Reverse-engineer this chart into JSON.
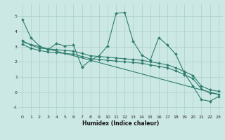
{
  "xlabel": "Humidex (Indice chaleur)",
  "bg_color": "#cce8e4",
  "line_color": "#2e7d6e",
  "grid_color": "#aacfcb",
  "xlim": [
    -0.5,
    23.5
  ],
  "ylim": [
    -1.5,
    5.8
  ],
  "yticks": [
    -1,
    0,
    1,
    2,
    3,
    4,
    5
  ],
  "xticks": [
    0,
    1,
    2,
    3,
    4,
    5,
    6,
    7,
    8,
    9,
    10,
    11,
    12,
    13,
    14,
    15,
    16,
    17,
    18,
    19,
    20,
    21,
    22,
    23
  ],
  "line1_x": [
    0,
    1,
    2,
    3,
    4,
    5,
    6,
    7,
    8,
    9,
    10,
    11,
    12,
    13,
    14,
    15,
    16,
    17,
    18,
    19,
    20,
    21,
    22,
    23
  ],
  "line1_y": [
    4.8,
    3.6,
    3.05,
    2.8,
    3.2,
    3.05,
    3.1,
    1.65,
    2.1,
    2.4,
    3.05,
    5.2,
    5.25,
    3.35,
    2.45,
    2.1,
    3.6,
    3.1,
    2.5,
    1.25,
    0.4,
    -0.5,
    -0.6,
    -0.3
  ],
  "line2_x": [
    0,
    1,
    2,
    3,
    4,
    5,
    6,
    7,
    8,
    9,
    10,
    11,
    12,
    13,
    14,
    15,
    16,
    17,
    18,
    19,
    20,
    21,
    22,
    23
  ],
  "line2_y": [
    3.4,
    3.1,
    2.9,
    2.85,
    2.8,
    2.75,
    2.7,
    2.55,
    2.4,
    2.35,
    2.3,
    2.25,
    2.2,
    2.15,
    2.1,
    2.0,
    1.9,
    1.8,
    1.6,
    1.35,
    1.1,
    0.4,
    0.15,
    0.05
  ],
  "line3_x": [
    0,
    1,
    2,
    3,
    4,
    5,
    6,
    7,
    8,
    9,
    10,
    11,
    12,
    13,
    14,
    15,
    16,
    17,
    18,
    19,
    20,
    21,
    22,
    23
  ],
  "line3_y": [
    3.15,
    2.9,
    2.75,
    2.65,
    2.6,
    2.55,
    2.5,
    2.35,
    2.2,
    2.15,
    2.1,
    2.05,
    2.0,
    1.95,
    1.9,
    1.8,
    1.7,
    1.6,
    1.4,
    1.15,
    0.9,
    0.2,
    -0.05,
    -0.15
  ],
  "line4_x": [
    0,
    23
  ],
  "line4_y": [
    3.3,
    -0.15
  ]
}
